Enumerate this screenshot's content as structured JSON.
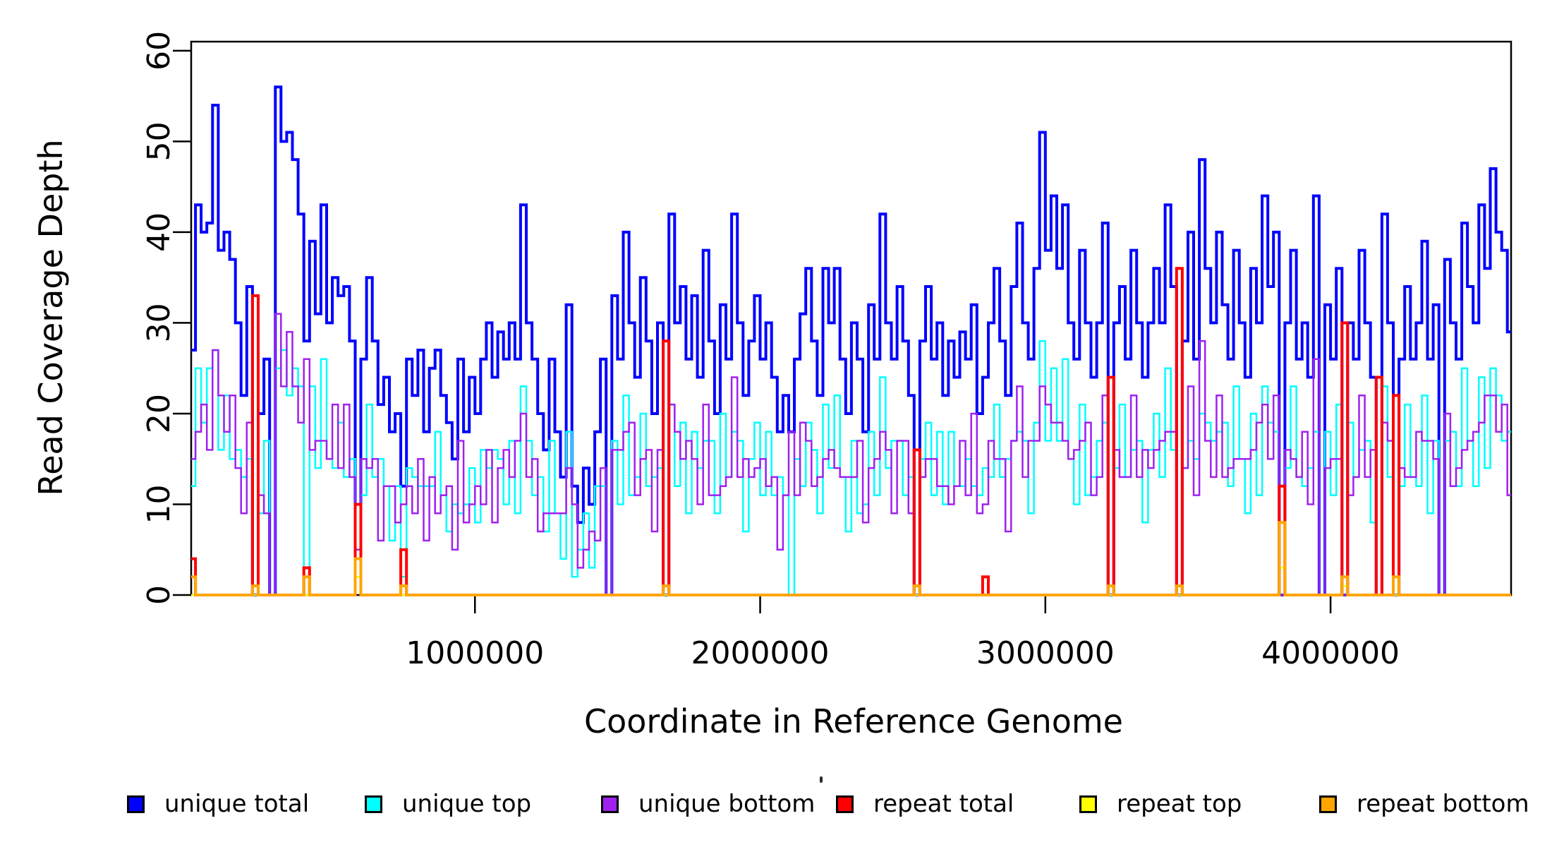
{
  "figure": {
    "background": "#FFFFFF",
    "axis_color": "#000000"
  },
  "chart_data": {
    "type": "line",
    "subtype": "step-coverage-histogram",
    "title": "",
    "xlabel": "Coordinate in Reference Genome",
    "ylabel": "Read Coverage Depth",
    "xlim": [
      5000,
      4633000
    ],
    "ylim": [
      0,
      61
    ],
    "grid": false,
    "legend_position": "bottom",
    "x_ticks": {
      "values": [
        1000000,
        2000000,
        3000000,
        4000000
      ],
      "labels": [
        "1000000",
        "2000000",
        "3000000",
        "4000000"
      ]
    },
    "y_ticks": {
      "values": [
        0,
        10,
        20,
        30,
        40,
        50,
        60
      ],
      "labels": [
        "0",
        "10",
        "20",
        "30",
        "40",
        "50",
        "60"
      ]
    },
    "bin_size": 20000,
    "series": [
      {
        "name": "unique total",
        "color": "#0000FF",
        "line_width": 4,
        "values": [
          27,
          43,
          40,
          41,
          54,
          38,
          40,
          37,
          30,
          22,
          34,
          0,
          20,
          26,
          0,
          56,
          50,
          51,
          48,
          42,
          28,
          39,
          31,
          43,
          30,
          35,
          33,
          34,
          28,
          10,
          26,
          35,
          28,
          21,
          24,
          18,
          20,
          12,
          26,
          22,
          27,
          18,
          25,
          27,
          22,
          19,
          15,
          26,
          18,
          24,
          20,
          26,
          30,
          24,
          29,
          26,
          30,
          26,
          43,
          30,
          26,
          20,
          16,
          26,
          18,
          13,
          32,
          12,
          8,
          14,
          10,
          18,
          26,
          0,
          33,
          26,
          40,
          30,
          24,
          35,
          28,
          20,
          30,
          0,
          42,
          30,
          34,
          26,
          33,
          24,
          38,
          28,
          20,
          32,
          26,
          42,
          30,
          22,
          28,
          33,
          26,
          30,
          24,
          18,
          22,
          18,
          26,
          31,
          36,
          28,
          22,
          36,
          30,
          36,
          26,
          20,
          30,
          26,
          18,
          32,
          26,
          42,
          30,
          26,
          34,
          28,
          22,
          0,
          28,
          34,
          26,
          30,
          22,
          28,
          24,
          29,
          26,
          32,
          20,
          24,
          30,
          36,
          28,
          22,
          34,
          41,
          30,
          26,
          36,
          51,
          38,
          44,
          36,
          43,
          30,
          26,
          38,
          30,
          24,
          30,
          41,
          0,
          30,
          34,
          26,
          38,
          30,
          24,
          30,
          36,
          30,
          43,
          34,
          0,
          28,
          40,
          26,
          48,
          36,
          30,
          40,
          32,
          26,
          38,
          30,
          24,
          36,
          30,
          44,
          34,
          40,
          0,
          30,
          38,
          26,
          30,
          24,
          44,
          0,
          32,
          26,
          36,
          0,
          30,
          26,
          38,
          30,
          24,
          0,
          42,
          30,
          0,
          26,
          34,
          26,
          30,
          39,
          26,
          32,
          0,
          37,
          30,
          26,
          41,
          34,
          30,
          43,
          36,
          47,
          40,
          38,
          29
        ]
      },
      {
        "name": "unique top",
        "color": "#00FFFF",
        "line_width": 2.5,
        "values": [
          12,
          25,
          19,
          25,
          27,
          16,
          22,
          15,
          16,
          13,
          15,
          0,
          9,
          17,
          0,
          25,
          27,
          22,
          25,
          23,
          2,
          23,
          14,
          26,
          15,
          14,
          19,
          13,
          15,
          5,
          11,
          21,
          13,
          15,
          12,
          6,
          12,
          2,
          14,
          13,
          12,
          12,
          12,
          18,
          11,
          7,
          10,
          9,
          10,
          14,
          8,
          16,
          14,
          16,
          15,
          10,
          17,
          9,
          23,
          17,
          11,
          13,
          7,
          17,
          9,
          4,
          18,
          2,
          5,
          9,
          3,
          12,
          12,
          0,
          17,
          10,
          22,
          11,
          13,
          20,
          12,
          13,
          14,
          0,
          21,
          12,
          19,
          9,
          18,
          14,
          17,
          17,
          9,
          20,
          13,
          18,
          17,
          7,
          15,
          19,
          11,
          18,
          11,
          13,
          11,
          0,
          15,
          12,
          19,
          16,
          9,
          21,
          14,
          22,
          13,
          7,
          17,
          9,
          10,
          18,
          11,
          24,
          14,
          17,
          17,
          11,
          13,
          0,
          15,
          19,
          11,
          18,
          10,
          18,
          12,
          12,
          15,
          12,
          11,
          14,
          13,
          21,
          13,
          15,
          17,
          18,
          17,
          9,
          19,
          28,
          17,
          25,
          17,
          26,
          15,
          10,
          21,
          11,
          13,
          17,
          19,
          0,
          14,
          21,
          13,
          16,
          17,
          8,
          16,
          20,
          13,
          25,
          16,
          0,
          14,
          17,
          15,
          20,
          19,
          17,
          18,
          19,
          12,
          23,
          15,
          9,
          20,
          11,
          23,
          19,
          18,
          0,
          14,
          23,
          13,
          12,
          14,
          18,
          0,
          18,
          11,
          21,
          0,
          19,
          13,
          16,
          17,
          8,
          0,
          23,
          13,
          0,
          12,
          21,
          13,
          12,
          22,
          9,
          17,
          0,
          17,
          18,
          12,
          25,
          17,
          12,
          24,
          14,
          25,
          22,
          17,
          18
        ]
      },
      {
        "name": "unique bottom",
        "color": "#A020F0",
        "line_width": 2.5,
        "values": [
          15,
          18,
          21,
          16,
          27,
          22,
          18,
          22,
          14,
          9,
          19,
          0,
          11,
          9,
          0,
          31,
          23,
          29,
          23,
          19,
          26,
          16,
          17,
          17,
          15,
          21,
          14,
          21,
          13,
          5,
          15,
          14,
          15,
          6,
          12,
          12,
          8,
          10,
          12,
          9,
          15,
          6,
          13,
          9,
          11,
          12,
          5,
          17,
          8,
          10,
          12,
          10,
          16,
          8,
          14,
          16,
          13,
          17,
          20,
          13,
          15,
          7,
          9,
          9,
          9,
          9,
          14,
          10,
          3,
          5,
          7,
          6,
          14,
          0,
          16,
          16,
          18,
          19,
          11,
          15,
          16,
          7,
          16,
          0,
          21,
          18,
          15,
          17,
          15,
          10,
          21,
          11,
          11,
          12,
          13,
          24,
          13,
          15,
          13,
          14,
          15,
          12,
          13,
          5,
          11,
          18,
          11,
          19,
          17,
          12,
          13,
          15,
          16,
          14,
          13,
          13,
          13,
          17,
          8,
          14,
          15,
          18,
          16,
          9,
          17,
          17,
          9,
          0,
          13,
          15,
          15,
          12,
          12,
          10,
          12,
          17,
          11,
          20,
          9,
          10,
          17,
          15,
          15,
          7,
          17,
          23,
          13,
          17,
          17,
          23,
          21,
          19,
          19,
          17,
          15,
          16,
          17,
          19,
          11,
          13,
          22,
          0,
          16,
          13,
          13,
          22,
          13,
          16,
          14,
          16,
          17,
          18,
          18,
          0,
          14,
          23,
          11,
          28,
          17,
          13,
          22,
          13,
          14,
          15,
          15,
          15,
          16,
          19,
          21,
          15,
          22,
          0,
          16,
          15,
          13,
          18,
          10,
          26,
          0,
          14,
          15,
          15,
          0,
          11,
          13,
          22,
          13,
          16,
          0,
          19,
          17,
          0,
          14,
          13,
          13,
          18,
          17,
          17,
          15,
          0,
          20,
          12,
          14,
          16,
          17,
          18,
          19,
          22,
          22,
          18,
          21,
          11
        ]
      },
      {
        "name": "repeat total",
        "color": "#FF0000",
        "line_width": 4,
        "baseline": 0,
        "spikes": [
          [
            0,
            4
          ],
          [
            220000,
            33
          ],
          [
            400000,
            3
          ],
          [
            580000,
            10
          ],
          [
            740000,
            5
          ],
          [
            1660000,
            28
          ],
          [
            2540000,
            16
          ],
          [
            2780000,
            2
          ],
          [
            3220000,
            24
          ],
          [
            3460000,
            36
          ],
          [
            3820000,
            12
          ],
          [
            4040000,
            30
          ],
          [
            4160000,
            24
          ],
          [
            4220000,
            22
          ]
        ]
      },
      {
        "name": "repeat top",
        "color": "#FFFF00",
        "line_width": 2.5,
        "baseline": 0,
        "spikes": [
          [
            580000,
            2
          ],
          [
            3820000,
            3
          ],
          [
            4040000,
            1
          ]
        ]
      },
      {
        "name": "repeat bottom",
        "color": "#FFA500",
        "line_width": 4,
        "baseline": 0,
        "spikes": [
          [
            0,
            2
          ],
          [
            220000,
            1
          ],
          [
            400000,
            2
          ],
          [
            580000,
            4
          ],
          [
            740000,
            1
          ],
          [
            1660000,
            1
          ],
          [
            2540000,
            1
          ],
          [
            3220000,
            1
          ],
          [
            3460000,
            1
          ],
          [
            3820000,
            8
          ],
          [
            4040000,
            2
          ],
          [
            4220000,
            2
          ]
        ]
      }
    ]
  }
}
